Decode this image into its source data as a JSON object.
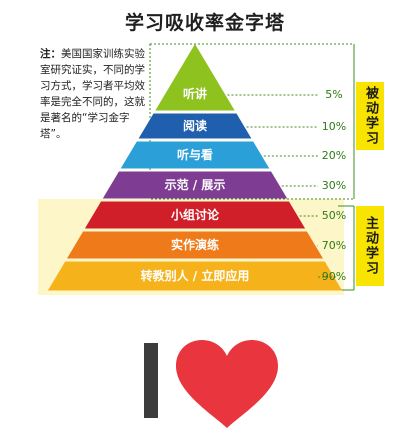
{
  "title": "学习吸收率金字塔",
  "note": {
    "prefix": "注：",
    "text": "美国国家训练实验室研究证实，不同的学习方式，学习者平均效率是完全不同的，这就是著名的“学习金字塔”。"
  },
  "levels": [
    {
      "label": "听讲",
      "pct": "5%",
      "color": "#8dc21f"
    },
    {
      "label": "阅读",
      "pct": "10%",
      "color": "#1f5fae"
    },
    {
      "label": "听与看",
      "pct": "20%",
      "color": "#2a9fd8"
    },
    {
      "label": "示范 / 展示",
      "pct": "30%",
      "color": "#7e3d92"
    },
    {
      "label": "小组讨论",
      "pct": "50%",
      "color": "#d11f2a"
    },
    {
      "label": "实作演练",
      "pct": "70%",
      "color": "#ef7a1a"
    },
    {
      "label": "转教别人 / 立即应用",
      "pct": "90%",
      "color": "#f6b21b"
    }
  ],
  "groups": {
    "passive": "被动学习",
    "active": "主动学习"
  },
  "colors": {
    "passive_bg": "#ffffff",
    "active_bg": "#fdf6c8",
    "bracket": "#3e8f21",
    "side_tab": "#f8e400",
    "heart": "#e8353e"
  },
  "icons": [
    "letter-i-bar",
    "heart-icon"
  ]
}
